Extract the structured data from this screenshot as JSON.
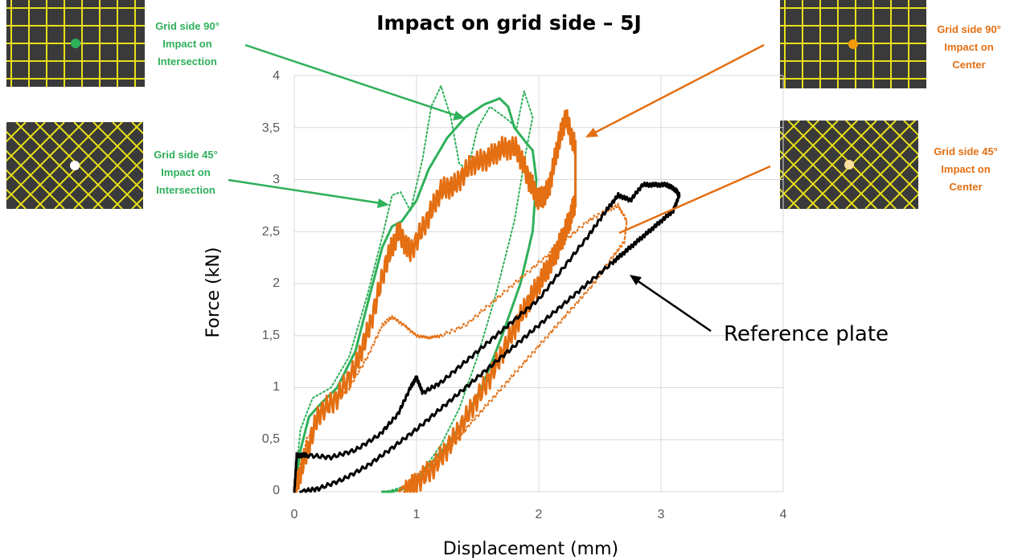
{
  "chart_data": {
    "type": "line",
    "title": "Impact on grid side – 5J",
    "xlabel": "Displacement (mm)",
    "ylabel": "Force (kN)",
    "xlim": [
      0,
      4
    ],
    "ylim": [
      0,
      4
    ],
    "x_ticks": [
      "0",
      "1",
      "2",
      "3",
      "4"
    ],
    "y_ticks": [
      "0",
      "0,5",
      "1",
      "1,5",
      "2",
      "2,5",
      "3",
      "3,5",
      "4"
    ],
    "grid": true,
    "series": [
      {
        "color": "#2fb05a",
        "style": "solid",
        "oscillation": 0,
        "x": [
          0,
          0.05,
          0.12,
          0.22,
          0.35,
          0.5,
          0.62,
          0.72,
          0.8,
          0.88,
          1.0,
          1.1,
          1.25,
          1.4,
          1.55,
          1.68,
          1.75,
          1.8,
          1.9,
          1.95,
          1.98,
          1.95,
          1.85,
          1.7,
          1.55,
          1.4,
          1.25,
          1.1,
          1.0,
          0.9,
          0.8,
          0.72
        ],
        "y": [
          0,
          0.4,
          0.72,
          0.85,
          1.0,
          1.35,
          1.9,
          2.35,
          2.55,
          2.6,
          2.8,
          3.1,
          3.4,
          3.6,
          3.72,
          3.78,
          3.7,
          3.5,
          3.35,
          3.28,
          3.0,
          2.5,
          2.0,
          1.5,
          1.05,
          0.7,
          0.45,
          0.25,
          0.1,
          0.03,
          0.0,
          0.0
        ]
      },
      {
        "color": "#2fb05a",
        "style": "dotted",
        "oscillation": 0,
        "x": [
          0,
          0.05,
          0.15,
          0.3,
          0.45,
          0.6,
          0.72,
          0.8,
          0.87,
          0.95,
          1.05,
          1.12,
          1.2,
          1.28,
          1.35,
          1.42,
          1.5,
          1.6,
          1.72,
          1.82,
          1.88,
          1.95,
          1.9,
          1.8,
          1.65,
          1.5,
          1.35,
          1.2,
          1.05,
          0.9,
          0.75
        ],
        "y": [
          0,
          0.6,
          0.9,
          1.0,
          1.3,
          1.9,
          2.45,
          2.85,
          2.88,
          2.7,
          3.2,
          3.7,
          3.9,
          3.6,
          3.15,
          3.1,
          3.5,
          3.7,
          3.6,
          3.5,
          3.85,
          3.6,
          3.3,
          2.6,
          1.9,
          1.3,
          0.8,
          0.45,
          0.2,
          0.05,
          0.0
        ]
      },
      {
        "color": "#e46f12",
        "style": "solid",
        "oscillation": 0.11,
        "x": [
          0,
          0.08,
          0.2,
          0.35,
          0.5,
          0.62,
          0.75,
          0.85,
          0.95,
          1.08,
          1.2,
          1.32,
          1.45,
          1.58,
          1.7,
          1.82,
          1.92,
          2.0,
          2.08,
          2.15,
          2.22,
          2.3,
          2.3,
          2.25,
          2.18,
          2.1,
          2.0,
          1.88,
          1.75,
          1.6,
          1.45,
          1.3,
          1.15,
          1.0,
          0.9
        ],
        "y": [
          0,
          0.3,
          0.75,
          0.9,
          1.2,
          1.6,
          2.2,
          2.5,
          2.3,
          2.6,
          2.9,
          2.95,
          3.15,
          3.2,
          3.3,
          3.3,
          3.0,
          2.8,
          2.9,
          3.3,
          3.6,
          3.3,
          2.8,
          2.6,
          2.4,
          2.2,
          2.0,
          1.75,
          1.45,
          1.1,
          0.8,
          0.5,
          0.25,
          0.08,
          0.0
        ]
      },
      {
        "color": "#e46f12",
        "style": "dotted",
        "oscillation": 0.02,
        "x": [
          0,
          0.1,
          0.25,
          0.45,
          0.6,
          0.72,
          0.8,
          0.9,
          1.0,
          1.1,
          1.2,
          1.4,
          1.6,
          1.8,
          2.0,
          2.2,
          2.4,
          2.55,
          2.65,
          2.72,
          2.7,
          2.6,
          2.45,
          2.3,
          2.15,
          2.0,
          1.85,
          1.7,
          1.55,
          1.4,
          1.25,
          1.1,
          1.0,
          0.9,
          0.85
        ],
        "y": [
          0,
          0.5,
          0.8,
          1.0,
          1.3,
          1.6,
          1.68,
          1.6,
          1.5,
          1.48,
          1.5,
          1.6,
          1.8,
          2.0,
          2.2,
          2.4,
          2.6,
          2.7,
          2.75,
          2.6,
          2.4,
          2.25,
          2.0,
          1.8,
          1.6,
          1.4,
          1.2,
          1.0,
          0.8,
          0.6,
          0.4,
          0.25,
          0.15,
          0.05,
          0.0
        ]
      },
      {
        "color": "#000000",
        "style": "solid",
        "oscillation": 0.02,
        "x": [
          0,
          0.02,
          0.1,
          0.3,
          0.5,
          0.7,
          0.85,
          0.95,
          1.0,
          1.05,
          1.2,
          1.4,
          1.6,
          1.8,
          2.0,
          2.2,
          2.4,
          2.55,
          2.65,
          2.75,
          2.85,
          2.95,
          3.05,
          3.12,
          3.15,
          3.1,
          3.0,
          2.9,
          2.8,
          2.7,
          2.6,
          2.4,
          2.2,
          2.0,
          1.8,
          1.6,
          1.4,
          1.2,
          1.0,
          0.8,
          0.6,
          0.4,
          0.2,
          0.05
        ],
        "y": [
          0,
          0.35,
          0.35,
          0.33,
          0.4,
          0.55,
          0.75,
          1.0,
          1.1,
          0.95,
          1.05,
          1.25,
          1.45,
          1.65,
          1.85,
          2.15,
          2.45,
          2.7,
          2.85,
          2.8,
          2.95,
          2.95,
          2.95,
          2.9,
          2.85,
          2.7,
          2.6,
          2.5,
          2.4,
          2.3,
          2.2,
          2.0,
          1.8,
          1.6,
          1.4,
          1.2,
          1.0,
          0.8,
          0.6,
          0.42,
          0.25,
          0.12,
          0.03,
          0.0
        ]
      }
    ],
    "annotations": [
      {
        "lines": [
          "Grid side 90°",
          "Impact on",
          "Intersection"
        ],
        "color": "#2fb05a"
      },
      {
        "lines": [
          "Grid side 45°",
          "Impact on",
          "Intersection"
        ],
        "color": "#2fb05a"
      },
      {
        "lines": [
          "Grid side 90°",
          "Impact on",
          "Center"
        ],
        "color": "#e46f12"
      },
      {
        "lines": [
          "Grid side 45°",
          "Impact on",
          "Center"
        ],
        "color": "#e46f12"
      },
      {
        "lines": [
          "Reference plate"
        ],
        "color": "#000000"
      }
    ],
    "insets": [
      {
        "pattern": "square-grid",
        "marker_color": "#2fb05a"
      },
      {
        "pattern": "diagonal-grid",
        "marker_color": "#ffffff"
      },
      {
        "pattern": "square-grid",
        "marker_color": "#f59a0c"
      },
      {
        "pattern": "diagonal-grid",
        "marker_color": "#ffe0a0"
      }
    ],
    "colors": {
      "grid_line": "#d9d9d9",
      "inset_bg": "#3a3a3a",
      "inset_line": "#e8e018"
    }
  }
}
